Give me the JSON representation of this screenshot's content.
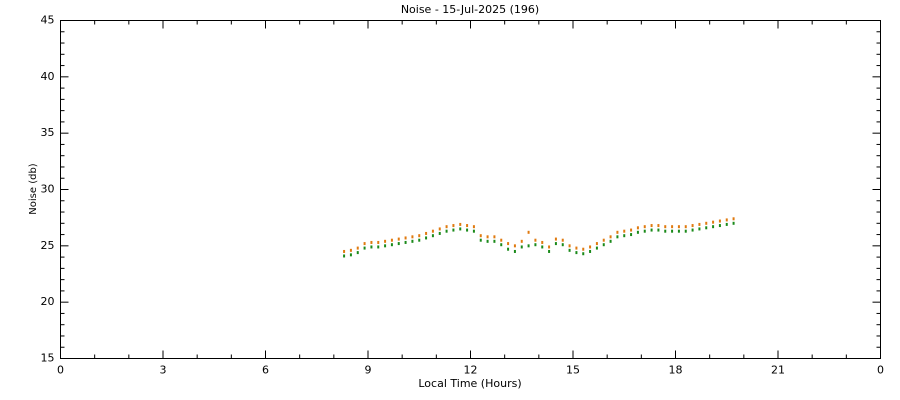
{
  "chart_data": {
    "type": "scatter",
    "title": "Noise - 15-Jul-2025 (196)",
    "xlabel": "Local Time (Hours)",
    "ylabel": "Noise (db)",
    "xlim": [
      0,
      24
    ],
    "xticks": [
      0,
      3,
      6,
      9,
      12,
      15,
      18,
      21,
      {
        "value": 24,
        "label": "0"
      }
    ],
    "ylim": [
      15,
      45
    ],
    "yticks": [
      15,
      20,
      25,
      30,
      35,
      40,
      45
    ],
    "grid": false,
    "series": [
      {
        "color": "#e07a10",
        "x": [
          8.3,
          8.5,
          8.7,
          8.9,
          9.1,
          9.3,
          9.5,
          9.7,
          9.9,
          10.1,
          10.3,
          10.5,
          10.7,
          10.9,
          11.1,
          11.3,
          11.5,
          11.7,
          11.9,
          12.1,
          12.3,
          12.5,
          12.7,
          12.9,
          13.1,
          13.3,
          13.5,
          13.7,
          13.9,
          14.1,
          14.3,
          14.5,
          14.7,
          14.9,
          15.1,
          15.3,
          15.5,
          15.7,
          15.9,
          16.1,
          16.3,
          16.5,
          16.7,
          16.9,
          17.1,
          17.3,
          17.5,
          17.7,
          17.9,
          18.1,
          18.3,
          18.5,
          18.7,
          18.9,
          19.1,
          19.3,
          19.5,
          19.7
        ],
        "values": [
          24.5,
          24.6,
          24.8,
          25.2,
          25.3,
          25.3,
          25.4,
          25.5,
          25.6,
          25.7,
          25.8,
          25.9,
          26.1,
          26.3,
          26.5,
          26.7,
          26.8,
          26.9,
          26.8,
          26.7,
          25.9,
          25.8,
          25.8,
          25.5,
          25.2,
          25.0,
          25.4,
          26.2,
          25.5,
          25.3,
          24.9,
          25.6,
          25.5,
          25.0,
          24.8,
          24.7,
          24.9,
          25.2,
          25.5,
          25.8,
          26.2,
          26.3,
          26.4,
          26.6,
          26.7,
          26.8,
          26.8,
          26.7,
          26.7,
          26.7,
          26.7,
          26.8,
          26.9,
          27.0,
          27.1,
          27.2,
          27.3,
          27.4
        ]
      },
      {
        "color": "#1a8a1a",
        "x": [
          8.3,
          8.5,
          8.7,
          8.9,
          9.1,
          9.3,
          9.5,
          9.7,
          9.9,
          10.1,
          10.3,
          10.5,
          10.7,
          10.9,
          11.1,
          11.3,
          11.5,
          11.7,
          11.9,
          12.1,
          12.3,
          12.5,
          12.7,
          12.9,
          13.1,
          13.3,
          13.5,
          13.7,
          13.9,
          14.1,
          14.3,
          14.5,
          14.7,
          14.9,
          15.1,
          15.3,
          15.5,
          15.7,
          15.9,
          16.1,
          16.3,
          16.5,
          16.7,
          16.9,
          17.1,
          17.3,
          17.5,
          17.7,
          17.9,
          18.1,
          18.3,
          18.5,
          18.7,
          18.9,
          19.1,
          19.3,
          19.5,
          19.7
        ],
        "values": [
          24.1,
          24.2,
          24.4,
          24.8,
          24.9,
          24.9,
          25.0,
          25.1,
          25.2,
          25.3,
          25.4,
          25.5,
          25.7,
          25.9,
          26.1,
          26.3,
          26.4,
          26.5,
          26.4,
          26.3,
          25.5,
          25.4,
          25.4,
          25.1,
          24.7,
          24.5,
          24.9,
          25.0,
          25.1,
          24.9,
          24.5,
          25.2,
          25.1,
          24.6,
          24.4,
          24.3,
          24.5,
          24.8,
          25.1,
          25.4,
          25.8,
          25.9,
          26.0,
          26.2,
          26.3,
          26.4,
          26.4,
          26.3,
          26.3,
          26.3,
          26.3,
          26.4,
          26.5,
          26.6,
          26.7,
          26.8,
          26.9,
          27.0
        ]
      }
    ]
  }
}
